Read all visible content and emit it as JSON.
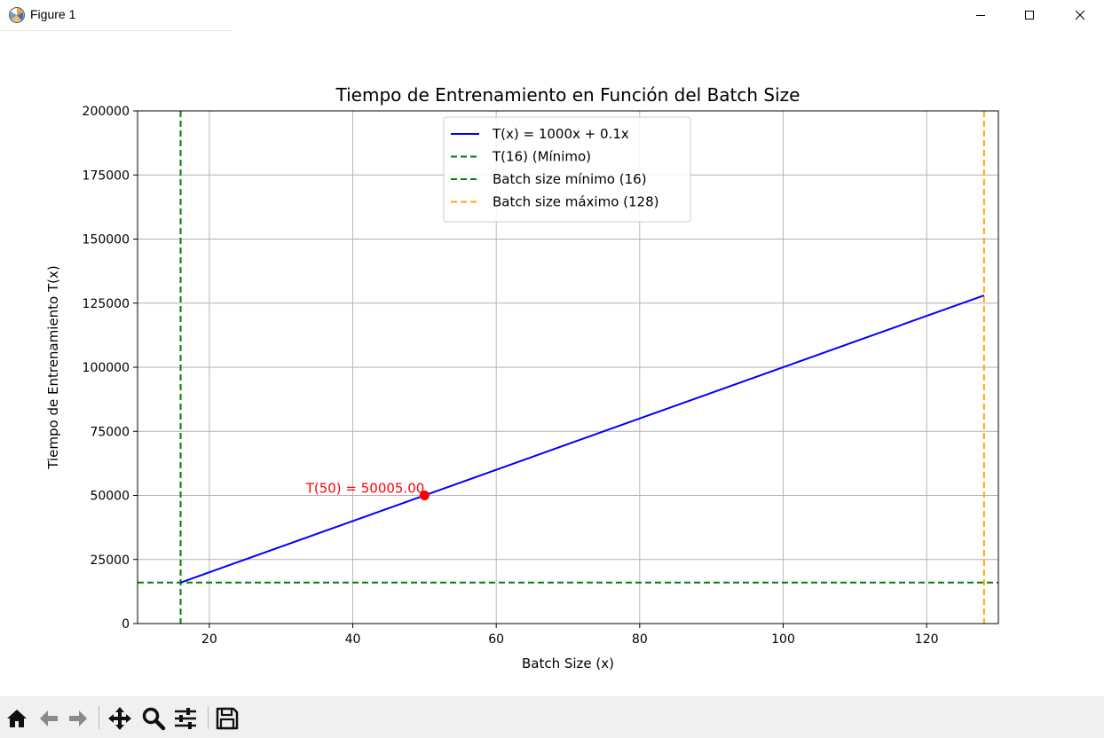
{
  "window": {
    "title": "Figure 1",
    "controls": [
      "minimize-icon",
      "maximize-icon",
      "close-icon"
    ]
  },
  "toolbar": {
    "buttons": [
      {
        "name": "home-button",
        "icon": "home-icon"
      },
      {
        "name": "back-button",
        "icon": "arrow-left-icon"
      },
      {
        "name": "forward-button",
        "icon": "arrow-right-icon"
      },
      {
        "name": "pan-button",
        "icon": "move-icon"
      },
      {
        "name": "zoom-button",
        "icon": "magnifier-icon"
      },
      {
        "name": "configure-subplots-button",
        "icon": "sliders-icon"
      },
      {
        "name": "save-button",
        "icon": "floppy-disk-icon"
      }
    ]
  },
  "chart_data": {
    "type": "line",
    "title": "Tiempo de Entrenamiento en Función del Batch Size",
    "xlabel": "Batch Size (x)",
    "ylabel": "Tiempo de Entrenamiento T(x)",
    "xlim": [
      10,
      130
    ],
    "ylim": [
      0,
      200000
    ],
    "xticks": [
      20,
      40,
      60,
      80,
      100,
      120
    ],
    "yticks": [
      0,
      25000,
      50000,
      75000,
      100000,
      125000,
      150000,
      175000,
      200000
    ],
    "grid": true,
    "legend_position": "upper center",
    "series": [
      {
        "name": "T(x) = 1000x + 0.1x",
        "color": "#0000ff",
        "style": "solid",
        "x": [
          16,
          128
        ],
        "y": [
          16001.6,
          128012.8
        ]
      },
      {
        "name": "T(16) (Mínimo)",
        "color": "#008000",
        "style": "dashed",
        "orientation": "horizontal",
        "value": 16001.6
      },
      {
        "name": "Batch size mínimo (16)",
        "color": "#008000",
        "style": "dashed",
        "orientation": "vertical",
        "value": 16
      },
      {
        "name": "Batch size máximo (128)",
        "color": "#ffa500",
        "style": "dashed",
        "orientation": "vertical",
        "value": 128
      }
    ],
    "point": {
      "x": 50,
      "y": 50005,
      "color": "#ff0000"
    },
    "annotation": {
      "text": "T(50) = 50005.00",
      "x": 50,
      "y": 50005,
      "color": "#ff0000"
    }
  }
}
